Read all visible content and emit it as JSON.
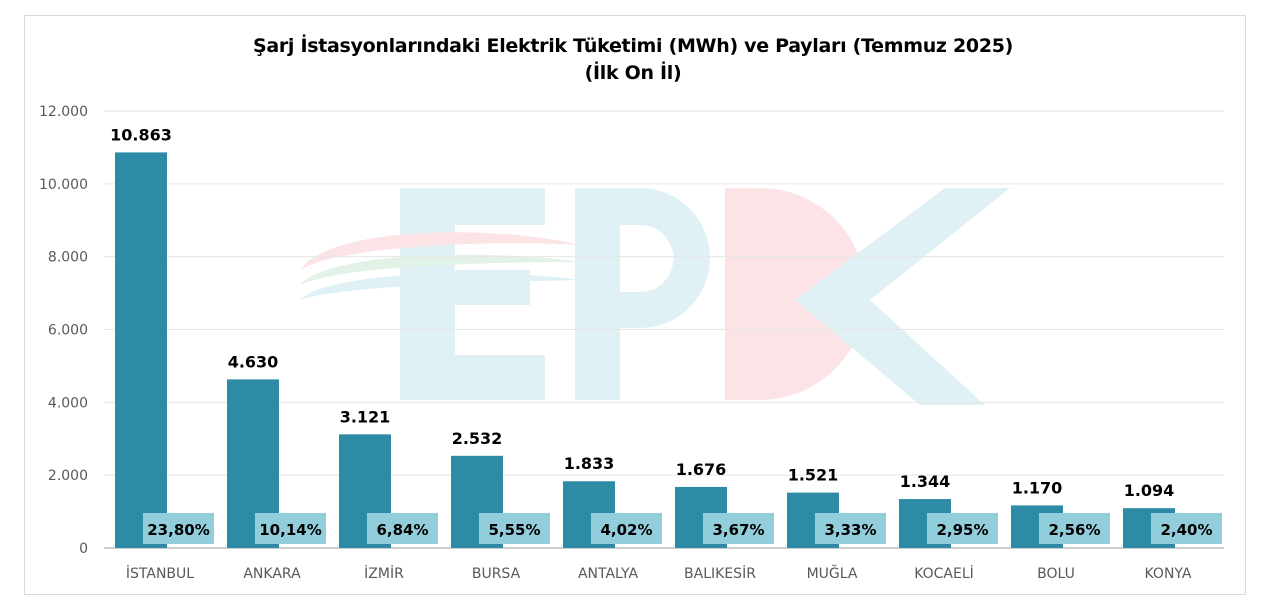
{
  "chart_data": {
    "type": "bar",
    "title": "Şarj İstasyonlarındaki Elektrik Tüketimi (MWh) ve Payları (Temmuz 2025)",
    "subtitle": "(İlk On İl)",
    "categories": [
      "İSTANBUL",
      "ANKARA",
      "İZMİR",
      "BURSA",
      "ANTALYA",
      "BALIKESİR",
      "MUĞLA",
      "KOCAELİ",
      "BOLU",
      "KONYA"
    ],
    "values": [
      10863,
      4630,
      3121,
      2532,
      1833,
      1676,
      1521,
      1344,
      1170,
      1094
    ],
    "value_labels": [
      "10.863",
      "4.630",
      "3.121",
      "2.532",
      "1.833",
      "1.676",
      "1.521",
      "1.344",
      "1.170",
      "1.094"
    ],
    "share_labels": [
      "23,80%",
      "10,14%",
      "6,84%",
      "5,55%",
      "4,02%",
      "3,67%",
      "3,33%",
      "2,95%",
      "2,56%",
      "2,40%"
    ],
    "ylim": [
      0,
      12000
    ],
    "yticks": [
      "0",
      "2.000",
      "4.000",
      "6.000",
      "8.000",
      "10.000",
      "12.000"
    ],
    "grid": true,
    "legend": "none",
    "colors": {
      "bar": "#2e8ba6",
      "share_box": "#92cddc",
      "watermark_blue": "#dff1f5",
      "watermark_red": "#fbe3e6"
    },
    "watermark": "EPDK"
  }
}
